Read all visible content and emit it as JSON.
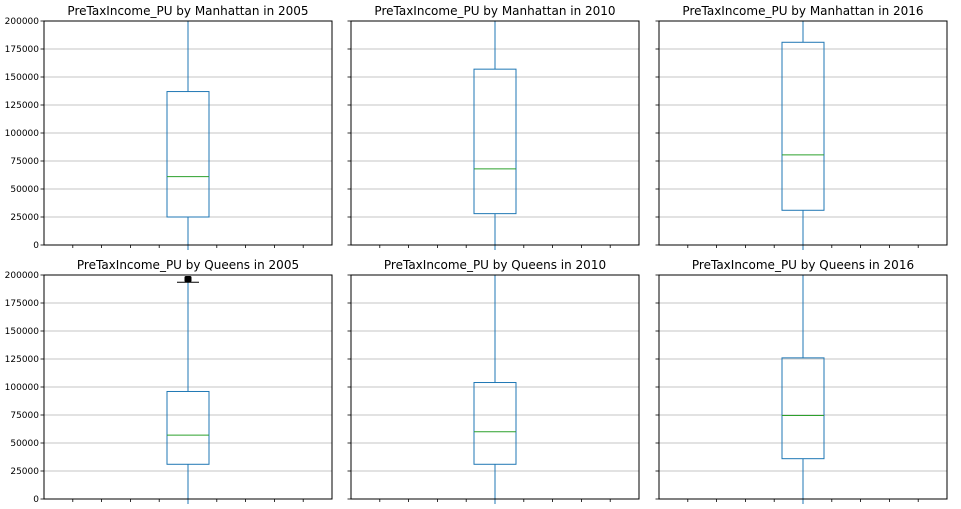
{
  "chart_data": [
    {
      "type": "box",
      "title": "PreTaxIncome_PU by Manhattan in 2005",
      "ylim": [
        0,
        200000
      ],
      "yticks": [
        0,
        25000,
        50000,
        75000,
        100000,
        125000,
        150000,
        175000,
        200000
      ],
      "ytick_labels": [
        "0",
        "25000",
        "50000",
        "75000",
        "100000",
        "125000",
        "150000",
        "175000",
        "200000"
      ],
      "show_ytick_labels": true,
      "grid": "horizontal",
      "box": {
        "q1": 25000,
        "median": 61000,
        "q3": 137000,
        "whisker_low": 0,
        "whisker_high": 200000,
        "fliers_top_clipped": false
      }
    },
    {
      "type": "box",
      "title": "PreTaxIncome_PU by Manhattan in 2010",
      "ylim": [
        0,
        200000
      ],
      "yticks": [
        0,
        25000,
        50000,
        75000,
        100000,
        125000,
        150000,
        175000,
        200000
      ],
      "ytick_labels": [],
      "show_ytick_labels": false,
      "grid": "horizontal",
      "box": {
        "q1": 28000,
        "median": 68000,
        "q3": 157000,
        "whisker_low": 0,
        "whisker_high": 200000,
        "fliers_top_clipped": false
      }
    },
    {
      "type": "box",
      "title": "PreTaxIncome_PU by Manhattan in 2016",
      "ylim": [
        0,
        200000
      ],
      "yticks": [
        0,
        25000,
        50000,
        75000,
        100000,
        125000,
        150000,
        175000,
        200000
      ],
      "ytick_labels": [],
      "show_ytick_labels": false,
      "grid": "horizontal",
      "box": {
        "q1": 31000,
        "median": 80500,
        "q3": 181000,
        "whisker_low": 0,
        "whisker_high": 200000,
        "fliers_top_clipped": false
      }
    },
    {
      "type": "box",
      "title": "PreTaxIncome_PU by Queens in 2005",
      "ylim": [
        0,
        200000
      ],
      "yticks": [
        0,
        25000,
        50000,
        75000,
        100000,
        125000,
        150000,
        175000,
        200000
      ],
      "ytick_labels": [
        "0",
        "25000",
        "50000",
        "75000",
        "100000",
        "125000",
        "150000",
        "175000",
        "200000"
      ],
      "show_ytick_labels": true,
      "grid": "horizontal",
      "box": {
        "q1": 31000,
        "median": 57000,
        "q3": 96000,
        "whisker_low": 0,
        "whisker_high": 193500,
        "fliers_top_clipped": true
      }
    },
    {
      "type": "box",
      "title": "PreTaxIncome_PU by Queens in 2010",
      "ylim": [
        0,
        200000
      ],
      "yticks": [
        0,
        25000,
        50000,
        75000,
        100000,
        125000,
        150000,
        175000,
        200000
      ],
      "ytick_labels": [],
      "show_ytick_labels": false,
      "grid": "horizontal",
      "box": {
        "q1": 31000,
        "median": 60000,
        "q3": 104000,
        "whisker_low": 0,
        "whisker_high": 200000,
        "fliers_top_clipped": false
      }
    },
    {
      "type": "box",
      "title": "PreTaxIncome_PU by Queens in 2016",
      "ylim": [
        0,
        200000
      ],
      "yticks": [
        0,
        25000,
        50000,
        75000,
        100000,
        125000,
        150000,
        175000,
        200000
      ],
      "ytick_labels": [],
      "show_ytick_labels": false,
      "grid": "horizontal",
      "box": {
        "q1": 36000,
        "median": 74500,
        "q3": 126000,
        "whisker_low": 0,
        "whisker_high": 200000,
        "fliers_top_clipped": false
      }
    }
  ],
  "colors": {
    "box": "#1f77b4",
    "median": "#2ca02c",
    "grid": "#b0b0b0",
    "flier": "#000000"
  }
}
